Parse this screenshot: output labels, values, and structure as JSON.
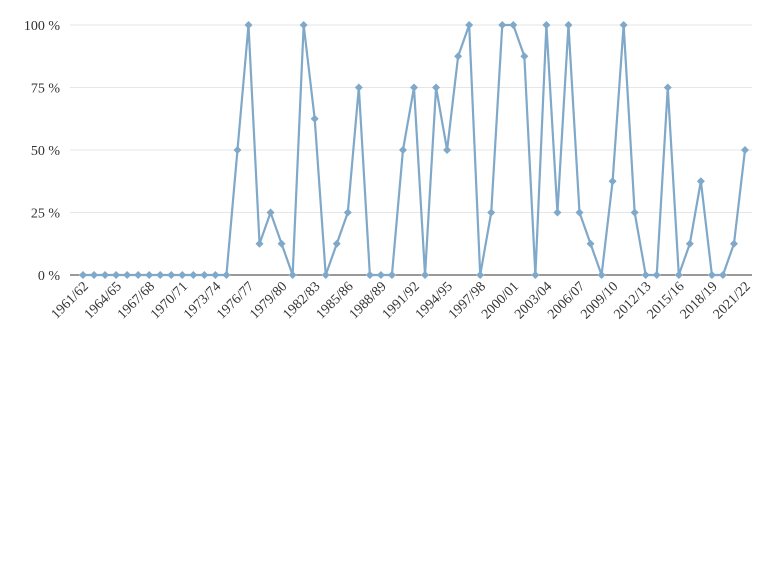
{
  "chart_data": {
    "type": "line",
    "title": "",
    "xlabel": "",
    "ylabel": "",
    "ylim": [
      0,
      100
    ],
    "y_ticks": [
      0,
      25,
      50,
      75,
      100
    ],
    "y_tick_labels": [
      "0 %",
      "25 %",
      "50 %",
      "75 %",
      "100 %"
    ],
    "grid": "horizontal",
    "legend": "none",
    "series_color": "#7fa8c9",
    "axis_color": "#333333",
    "grid_color": "#e6e6e6",
    "categories": [
      "1961/62",
      "1962/63",
      "1963/64",
      "1964/65",
      "1965/66",
      "1966/67",
      "1967/68",
      "1968/69",
      "1969/70",
      "1970/71",
      "1971/72",
      "1972/73",
      "1973/74",
      "1974/75",
      "1975/76",
      "1976/77",
      "1977/78",
      "1978/79",
      "1979/80",
      "1980/81",
      "1981/82",
      "1982/83",
      "1983/84",
      "1984/85",
      "1985/86",
      "1986/87",
      "1987/88",
      "1988/89",
      "1989/90",
      "1990/91",
      "1991/92",
      "1992/93",
      "1993/94",
      "1994/95",
      "1995/96",
      "1996/97",
      "1997/98",
      "1998/99",
      "1999/00",
      "2000/01",
      "2001/02",
      "2002/03",
      "2003/04",
      "2004/05",
      "2005/06",
      "2006/07",
      "2007/08",
      "2008/09",
      "2009/10",
      "2010/11",
      "2011/12",
      "2012/13",
      "2013/14",
      "2014/15",
      "2015/16",
      "2016/17",
      "2017/18",
      "2018/19",
      "2019/20",
      "2020/21",
      "2021/22"
    ],
    "x_tick_labels": [
      "1961/62",
      "1964/65",
      "1967/68",
      "1970/71",
      "1973/74",
      "1976/77",
      "1979/80",
      "1982/83",
      "1985/86",
      "1988/89",
      "1991/92",
      "1994/95",
      "1997/98",
      "2000/01",
      "2003/04",
      "2006/07",
      "2009/10",
      "2012/13",
      "2015/16",
      "2018/19",
      "2021/22"
    ],
    "series": [
      {
        "values": [
          0,
          0,
          0,
          0,
          0,
          0,
          0,
          0,
          0,
          0,
          0,
          0,
          0,
          0,
          50,
          100,
          12.5,
          25,
          12.5,
          0,
          100,
          62.5,
          0,
          12.5,
          25,
          75,
          0,
          0,
          0,
          50,
          75,
          0,
          75,
          50,
          87.5,
          100,
          0,
          25,
          100,
          100,
          87.5,
          0,
          100,
          25,
          100,
          25,
          12.5,
          0,
          37.5,
          100,
          25,
          0,
          0,
          75,
          0,
          12.5,
          37.5,
          0,
          0,
          12.5,
          50
        ]
      }
    ]
  }
}
